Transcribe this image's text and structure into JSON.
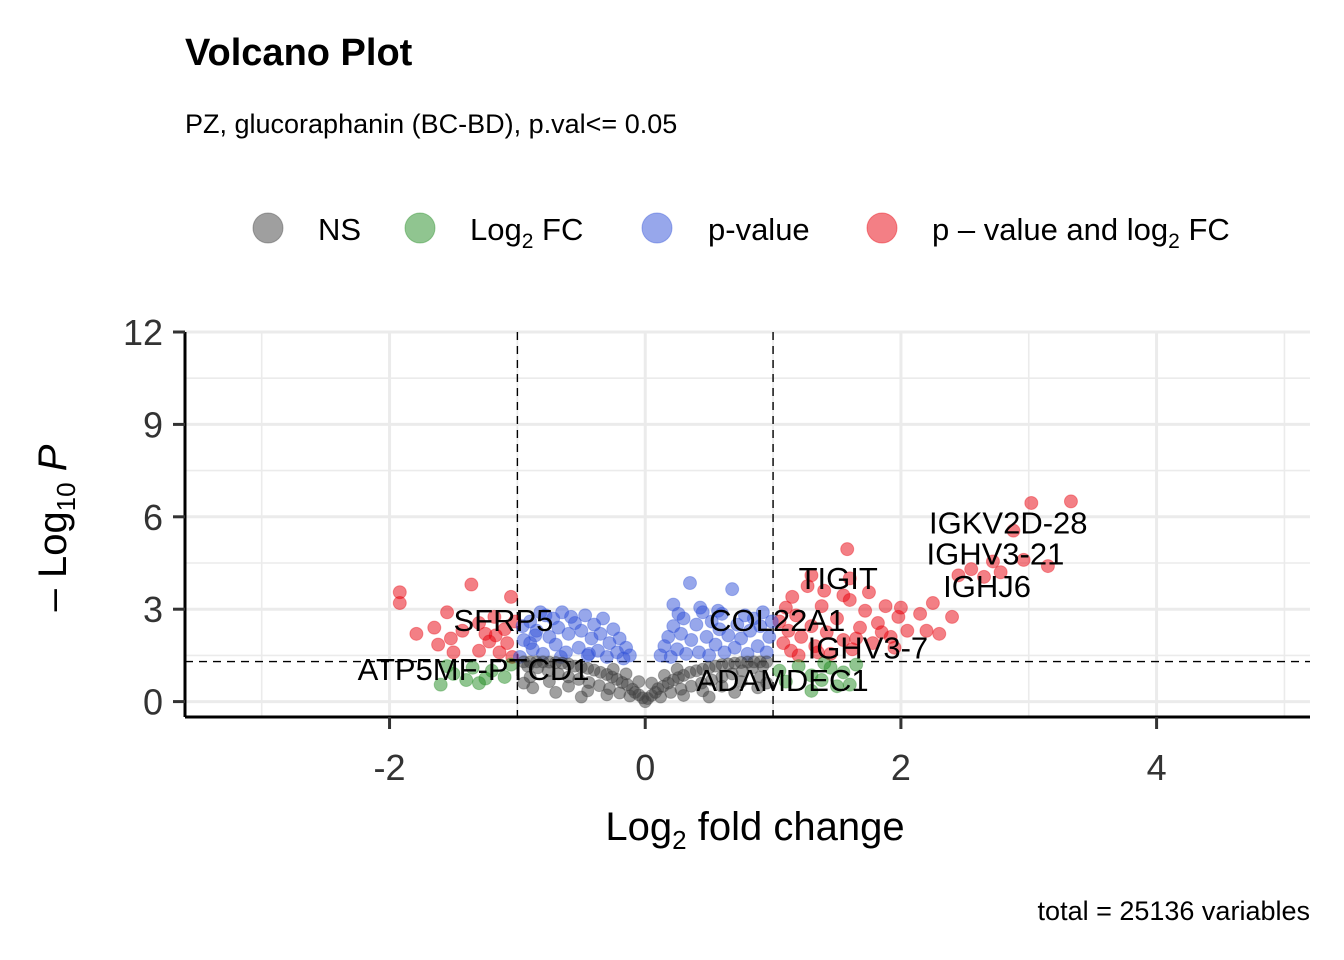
{
  "chart_data": {
    "type": "scatter",
    "title": "Volcano Plot",
    "subtitle": "PZ, glucoraphanin (BC-BD), p.val<= 0.05",
    "caption": "total = 25136 variables",
    "xlabel": {
      "main": "Log",
      "sub": "2",
      "rest": " fold change"
    },
    "ylabel": {
      "pre": "– Log",
      "sub": "10",
      "post": " P"
    },
    "xlim": [
      -3.6,
      5.2
    ],
    "ylim": [
      -0.5,
      12
    ],
    "xticks": [
      "-2",
      "0",
      "2",
      "4"
    ],
    "xtick_values": [
      -2,
      0,
      2,
      4
    ],
    "yticks": [
      "0",
      "3",
      "6",
      "9",
      "12"
    ],
    "ytick_values": [
      0,
      3,
      6,
      9,
      12
    ],
    "grid": true,
    "legend_position": "top",
    "cutoffs": {
      "log2fc": [
        -1,
        1
      ],
      "neg_log10_p": 1.3
    },
    "legend": [
      {
        "key": "ns",
        "color": "#404040",
        "label": "NS"
      },
      {
        "key": "fc",
        "color": "#228B22",
        "label": "Log",
        "sub": "2",
        "rest": " FC"
      },
      {
        "key": "p",
        "color": "#2F4FD8",
        "label": "p-value"
      },
      {
        "key": "both",
        "color": "#E8000B",
        "label": "p – value and log",
        "sub": "2",
        "rest": " FC"
      }
    ],
    "series": [
      {
        "key": "both",
        "points": [
          [
            -1.92,
            3.55
          ],
          [
            -1.92,
            3.2
          ],
          [
            -1.79,
            2.2
          ],
          [
            -1.65,
            2.4
          ],
          [
            -1.62,
            1.85
          ],
          [
            -1.55,
            2.9
          ],
          [
            -1.52,
            2.05
          ],
          [
            -1.43,
            2.3
          ],
          [
            -1.36,
            3.8
          ],
          [
            -1.3,
            2.55
          ],
          [
            -1.25,
            2.2
          ],
          [
            -1.18,
            2.75
          ],
          [
            -1.14,
            1.6
          ],
          [
            -1.1,
            2.35
          ],
          [
            -1.05,
            3.4
          ],
          [
            -1.02,
            2.6
          ],
          [
            -1.3,
            1.65
          ],
          [
            -1.22,
            1.95
          ],
          [
            -1.5,
            1.6
          ],
          [
            -1.08,
            1.9
          ],
          [
            -1.17,
            2.15
          ],
          [
            -1.04,
            1.45
          ],
          [
            1.05,
            2.6
          ],
          [
            1.08,
            1.9
          ],
          [
            1.1,
            3.05
          ],
          [
            1.12,
            2.3
          ],
          [
            1.14,
            1.65
          ],
          [
            1.18,
            2.8
          ],
          [
            1.22,
            2.1
          ],
          [
            1.27,
            3.75
          ],
          [
            1.3,
            2.45
          ],
          [
            1.33,
            1.8
          ],
          [
            1.38,
            3.1
          ],
          [
            1.42,
            2.25
          ],
          [
            1.45,
            1.55
          ],
          [
            1.5,
            2.7
          ],
          [
            1.55,
            2.0
          ],
          [
            1.6,
            3.3
          ],
          [
            1.62,
            1.7
          ],
          [
            1.68,
            2.4
          ],
          [
            1.72,
            2.95
          ],
          [
            1.78,
            1.9
          ],
          [
            1.82,
            2.55
          ],
          [
            1.88,
            3.1
          ],
          [
            1.92,
            2.1
          ],
          [
            1.98,
            2.75
          ],
          [
            2.05,
            2.3
          ],
          [
            2.15,
            2.85
          ],
          [
            2.2,
            2.3
          ],
          [
            2.3,
            2.2
          ],
          [
            2.4,
            2.75
          ],
          [
            2.45,
            4.1
          ],
          [
            1.58,
            4.95
          ],
          [
            1.3,
            4.1
          ],
          [
            1.4,
            3.6
          ],
          [
            1.15,
            3.4
          ],
          [
            1.75,
            3.55
          ],
          [
            2.25,
            3.2
          ],
          [
            2.55,
            4.3
          ],
          [
            2.65,
            4.05
          ],
          [
            2.72,
            4.55
          ],
          [
            2.78,
            4.2
          ],
          [
            2.88,
            5.55
          ],
          [
            2.96,
            4.6
          ],
          [
            3.02,
            6.45
          ],
          [
            3.15,
            4.4
          ],
          [
            3.33,
            6.5
          ],
          [
            1.2,
            1.5
          ],
          [
            1.35,
            1.6
          ],
          [
            1.65,
            2.05
          ],
          [
            1.85,
            2.25
          ],
          [
            1.95,
            1.75
          ],
          [
            2.0,
            3.05
          ],
          [
            1.55,
            3.45
          ],
          [
            1.6,
            4.0
          ]
        ]
      },
      {
        "key": "fc",
        "points": [
          [
            -1.6,
            0.55
          ],
          [
            -1.5,
            0.9
          ],
          [
            -1.4,
            0.7
          ],
          [
            -1.3,
            0.6
          ],
          [
            -1.2,
            1.0
          ],
          [
            -1.55,
            1.15
          ],
          [
            -1.35,
            1.1
          ],
          [
            -1.1,
            0.8
          ],
          [
            -1.05,
            1.2
          ],
          [
            -1.25,
            0.75
          ],
          [
            1.05,
            1.0
          ],
          [
            1.1,
            0.65
          ],
          [
            1.2,
            1.15
          ],
          [
            1.3,
            0.85
          ],
          [
            1.38,
            0.7
          ],
          [
            1.45,
            1.1
          ],
          [
            1.55,
            0.95
          ],
          [
            1.6,
            0.55
          ],
          [
            1.5,
            0.5
          ],
          [
            1.3,
            0.35
          ],
          [
            1.65,
            1.2
          ],
          [
            1.4,
            1.25
          ]
        ]
      },
      {
        "key": "p",
        "points": [
          [
            -0.98,
            1.45
          ],
          [
            -0.95,
            2.0
          ],
          [
            -0.9,
            2.6
          ],
          [
            -0.88,
            1.7
          ],
          [
            -0.85,
            2.3
          ],
          [
            -0.82,
            2.9
          ],
          [
            -0.8,
            1.55
          ],
          [
            -0.75,
            2.1
          ],
          [
            -0.72,
            2.7
          ],
          [
            -0.7,
            1.85
          ],
          [
            -0.68,
            2.4
          ],
          [
            -0.65,
            2.9
          ],
          [
            -0.62,
            1.6
          ],
          [
            -0.6,
            2.2
          ],
          [
            -0.55,
            2.55
          ],
          [
            -0.52,
            1.75
          ],
          [
            -0.5,
            2.3
          ],
          [
            -0.47,
            2.8
          ],
          [
            -0.45,
            1.5
          ],
          [
            -0.42,
            2.05
          ],
          [
            -0.4,
            2.5
          ],
          [
            -0.37,
            1.65
          ],
          [
            -0.35,
            2.2
          ],
          [
            -0.33,
            2.7
          ],
          [
            -0.3,
            1.45
          ],
          [
            -0.28,
            1.9
          ],
          [
            -0.25,
            2.35
          ],
          [
            -0.22,
            1.6
          ],
          [
            -0.2,
            2.05
          ],
          [
            -0.17,
            1.4
          ],
          [
            -0.15,
            1.75
          ],
          [
            -0.12,
            1.5
          ],
          [
            -0.9,
            1.9
          ],
          [
            -0.78,
            2.8
          ],
          [
            -0.58,
            2.75
          ],
          [
            -0.66,
            1.45
          ],
          [
            -0.44,
            1.55
          ],
          [
            0.12,
            1.5
          ],
          [
            0.15,
            1.8
          ],
          [
            0.18,
            2.1
          ],
          [
            0.2,
            1.45
          ],
          [
            0.22,
            2.45
          ],
          [
            0.25,
            1.7
          ],
          [
            0.28,
            2.2
          ],
          [
            0.3,
            2.7
          ],
          [
            0.32,
            1.55
          ],
          [
            0.35,
            3.85
          ],
          [
            0.36,
            2.0
          ],
          [
            0.4,
            2.5
          ],
          [
            0.42,
            1.6
          ],
          [
            0.45,
            2.9
          ],
          [
            0.48,
            2.1
          ],
          [
            0.5,
            1.5
          ],
          [
            0.52,
            2.6
          ],
          [
            0.55,
            1.85
          ],
          [
            0.58,
            2.35
          ],
          [
            0.6,
            2.85
          ],
          [
            0.62,
            1.6
          ],
          [
            0.65,
            2.15
          ],
          [
            0.68,
            3.65
          ],
          [
            0.7,
            1.75
          ],
          [
            0.72,
            2.5
          ],
          [
            0.75,
            2.05
          ],
          [
            0.78,
            2.8
          ],
          [
            0.8,
            1.55
          ],
          [
            0.82,
            2.3
          ],
          [
            0.85,
            2.7
          ],
          [
            0.88,
            1.8
          ],
          [
            0.9,
            2.45
          ],
          [
            0.92,
            2.9
          ],
          [
            0.95,
            1.6
          ],
          [
            0.97,
            2.1
          ],
          [
            0.22,
            3.15
          ],
          [
            0.43,
            3.05
          ],
          [
            0.57,
            2.95
          ],
          [
            0.99,
            2.6
          ],
          [
            0.26,
            2.85
          ],
          [
            -0.96,
            2.45
          ],
          [
            -0.86,
            2.15
          ]
        ]
      },
      {
        "key": "ns",
        "points": [
          [
            0,
            0
          ],
          [
            0.02,
            0.1
          ],
          [
            -0.02,
            0.12
          ],
          [
            0.05,
            0.2
          ],
          [
            -0.05,
            0.22
          ],
          [
            0.08,
            0.3
          ],
          [
            -0.08,
            0.3
          ],
          [
            0.1,
            0.42
          ],
          [
            -0.1,
            0.4
          ],
          [
            0.14,
            0.5
          ],
          [
            -0.14,
            0.55
          ],
          [
            0.18,
            0.6
          ],
          [
            -0.18,
            0.62
          ],
          [
            0.22,
            0.7
          ],
          [
            -0.22,
            0.72
          ],
          [
            0.26,
            0.78
          ],
          [
            -0.26,
            0.8
          ],
          [
            0.3,
            0.85
          ],
          [
            -0.3,
            0.88
          ],
          [
            0.35,
            0.95
          ],
          [
            -0.35,
            0.95
          ],
          [
            0.4,
            1.0
          ],
          [
            -0.4,
            1.02
          ],
          [
            0.45,
            1.05
          ],
          [
            -0.45,
            1.08
          ],
          [
            0.5,
            1.1
          ],
          [
            -0.5,
            1.12
          ],
          [
            0.55,
            1.15
          ],
          [
            -0.55,
            1.15
          ],
          [
            0.6,
            1.2
          ],
          [
            -0.6,
            1.22
          ],
          [
            0.65,
            1.22
          ],
          [
            -0.65,
            1.25
          ],
          [
            0.7,
            1.25
          ],
          [
            -0.7,
            1.27
          ],
          [
            0.75,
            1.27
          ],
          [
            -0.75,
            1.28
          ],
          [
            0.8,
            1.28
          ],
          [
            -0.8,
            1.29
          ],
          [
            0.85,
            1.29
          ],
          [
            -0.85,
            1.29
          ],
          [
            0.9,
            1.29
          ],
          [
            -0.9,
            1.29
          ],
          [
            0.95,
            1.29
          ],
          [
            -0.95,
            1.29
          ],
          [
            0.12,
            0.15
          ],
          [
            -0.12,
            0.18
          ],
          [
            0.2,
            0.3
          ],
          [
            -0.2,
            0.28
          ],
          [
            0.28,
            0.4
          ],
          [
            -0.28,
            0.42
          ],
          [
            0.36,
            0.5
          ],
          [
            -0.36,
            0.52
          ],
          [
            0.44,
            0.6
          ],
          [
            -0.44,
            0.62
          ],
          [
            0.52,
            0.7
          ],
          [
            -0.52,
            0.72
          ],
          [
            0.6,
            0.8
          ],
          [
            -0.6,
            0.8
          ],
          [
            0.68,
            0.9
          ],
          [
            -0.68,
            0.9
          ],
          [
            0.76,
            1.0
          ],
          [
            -0.76,
            1.0
          ],
          [
            0.84,
            1.1
          ],
          [
            -0.84,
            1.1
          ],
          [
            0.92,
            1.15
          ],
          [
            -0.92,
            1.15
          ],
          [
            0.3,
            0.2
          ],
          [
            -0.3,
            0.22
          ],
          [
            0.45,
            0.35
          ],
          [
            -0.45,
            0.35
          ],
          [
            0.6,
            0.5
          ],
          [
            -0.6,
            0.5
          ],
          [
            0.75,
            0.65
          ],
          [
            -0.75,
            0.65
          ],
          [
            0.9,
            0.8
          ],
          [
            -0.9,
            0.8
          ],
          [
            0.5,
            0.15
          ],
          [
            -0.5,
            0.15
          ],
          [
            0.7,
            0.3
          ],
          [
            -0.7,
            0.3
          ],
          [
            0.88,
            0.45
          ],
          [
            -0.88,
            0.45
          ],
          [
            0.95,
            0.6
          ],
          [
            -0.95,
            0.6
          ],
          [
            0.15,
            0.85
          ],
          [
            -0.15,
            0.9
          ],
          [
            0.25,
            1.05
          ],
          [
            -0.25,
            1.05
          ],
          [
            0.05,
            0.6
          ],
          [
            -0.05,
            0.65
          ]
        ]
      }
    ],
    "labels": [
      {
        "text": "SFRP5",
        "x": -1.5,
        "y": 2.3
      },
      {
        "text": "ATP5MF-PTCD1",
        "x": -2.25,
        "y": 0.7
      },
      {
        "text": "COL22A1",
        "x": 0.5,
        "y": 2.3
      },
      {
        "text": "TIGIT",
        "x": 1.2,
        "y": 3.65
      },
      {
        "text": "IGHV3-7",
        "x": 1.27,
        "y": 1.4
      },
      {
        "text": "ADAMDEC1",
        "x": 0.4,
        "y": 0.35
      },
      {
        "text": "IGKV2D-28",
        "x": 2.22,
        "y": 5.45
      },
      {
        "text": "IGHV3-21",
        "x": 2.2,
        "y": 4.45
      },
      {
        "text": "IGHJ6",
        "x": 2.33,
        "y": 3.4
      }
    ]
  }
}
